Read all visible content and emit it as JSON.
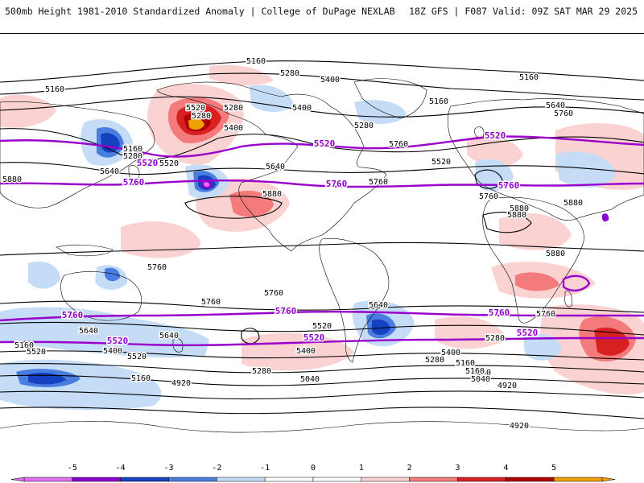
{
  "header": {
    "title_left": "500mb Height 1981-2010 Standardized Anomaly | College of DuPage NEXLAB",
    "title_right": "18Z GFS | F087 Valid: 09Z SAT MAR 29 2025"
  },
  "colors": {
    "land_line": "#000000",
    "contour": "#000000",
    "highlight_contour": "#9a00cc",
    "anom_neg5": "#e070f0",
    "anom_neg4": "#8a00d0",
    "anom_neg3": "#1540c0",
    "anom_neg2": "#4a7de0",
    "anom_neg1": "#c5dcf7",
    "anom_pos1": "#fbd2d2",
    "anom_pos2": "#f37b7b",
    "anom_pos3": "#d82020",
    "anom_pos4": "#b00000",
    "anom_pos5": "#f0a000"
  },
  "colorbar": {
    "ticks": [
      "-5",
      "-4",
      "-3",
      "-2",
      "-1",
      "0",
      "1",
      "2",
      "3",
      "4",
      "5"
    ],
    "bins": [
      "#e070f0",
      "#8a00d0",
      "#1540c0",
      "#4a7de0",
      "#c5dcf7",
      "#ffffff",
      "#ffffff",
      "#fbd2d2",
      "#f37b7b",
      "#d82020",
      "#b00000",
      "#f0a000"
    ]
  },
  "contour_labels": [
    {
      "text": "5160",
      "kind": "black"
    },
    {
      "text": "5280",
      "kind": "black"
    },
    {
      "text": "5160",
      "kind": "black"
    },
    {
      "text": "5400",
      "kind": "black"
    },
    {
      "text": "5520",
      "kind": "black"
    },
    {
      "text": "5280",
      "kind": "black"
    },
    {
      "text": "5400",
      "kind": "black"
    },
    {
      "text": "5160",
      "kind": "black"
    },
    {
      "text": "5160",
      "kind": "black"
    },
    {
      "text": "5280",
      "kind": "black"
    },
    {
      "text": "5400",
      "kind": "black"
    },
    {
      "text": "5280",
      "kind": "black"
    },
    {
      "text": "5160",
      "kind": "black"
    },
    {
      "text": "5280",
      "kind": "black"
    },
    {
      "text": "5640",
      "kind": "black"
    },
    {
      "text": "5760",
      "kind": "black"
    },
    {
      "text": "5640",
      "kind": "black"
    },
    {
      "text": "5520",
      "kind": "black"
    },
    {
      "text": "5640",
      "kind": "black"
    },
    {
      "text": "5520",
      "kind": "black"
    },
    {
      "text": "5760",
      "kind": "black"
    },
    {
      "text": "5760",
      "kind": "black"
    },
    {
      "text": "5760",
      "kind": "black"
    },
    {
      "text": "5880",
      "kind": "black"
    },
    {
      "text": "5880",
      "kind": "black"
    },
    {
      "text": "5880",
      "kind": "black"
    },
    {
      "text": "5880",
      "kind": "black"
    },
    {
      "text": "5880",
      "kind": "black"
    },
    {
      "text": "5880",
      "kind": "black"
    },
    {
      "text": "5760",
      "kind": "black"
    },
    {
      "text": "5760",
      "kind": "black"
    },
    {
      "text": "5760",
      "kind": "black"
    },
    {
      "text": "5640",
      "kind": "black"
    },
    {
      "text": "5760",
      "kind": "black"
    },
    {
      "text": "5640",
      "kind": "black"
    },
    {
      "text": "5640",
      "kind": "black"
    },
    {
      "text": "5520",
      "kind": "black"
    },
    {
      "text": "5280",
      "kind": "black"
    },
    {
      "text": "5160",
      "kind": "black"
    },
    {
      "text": "5520",
      "kind": "black"
    },
    {
      "text": "5400",
      "kind": "black"
    },
    {
      "text": "5520",
      "kind": "black"
    },
    {
      "text": "5400",
      "kind": "black"
    },
    {
      "text": "5400",
      "kind": "black"
    },
    {
      "text": "5160",
      "kind": "black"
    },
    {
      "text": "5040",
      "kind": "black"
    },
    {
      "text": "4920",
      "kind": "black"
    },
    {
      "text": "5280",
      "kind": "black"
    },
    {
      "text": "5160",
      "kind": "black"
    },
    {
      "text": "5040",
      "kind": "black"
    },
    {
      "text": "5280",
      "kind": "black"
    },
    {
      "text": "5160",
      "kind": "black"
    },
    {
      "text": "5040",
      "kind": "black"
    },
    {
      "text": "4920",
      "kind": "black"
    },
    {
      "text": "4920",
      "kind": "black"
    },
    {
      "text": "5520",
      "kind": "purple"
    },
    {
      "text": "5520",
      "kind": "purple"
    },
    {
      "text": "5520",
      "kind": "purple"
    },
    {
      "text": "5760",
      "kind": "purple"
    },
    {
      "text": "5760",
      "kind": "purple"
    },
    {
      "text": "5760",
      "kind": "purple"
    },
    {
      "text": "5760",
      "kind": "purple"
    },
    {
      "text": "5760",
      "kind": "purple"
    },
    {
      "text": "5760",
      "kind": "purple"
    },
    {
      "text": "5520",
      "kind": "purple"
    },
    {
      "text": "5520",
      "kind": "purple"
    },
    {
      "text": "5520",
      "kind": "purple"
    }
  ]
}
